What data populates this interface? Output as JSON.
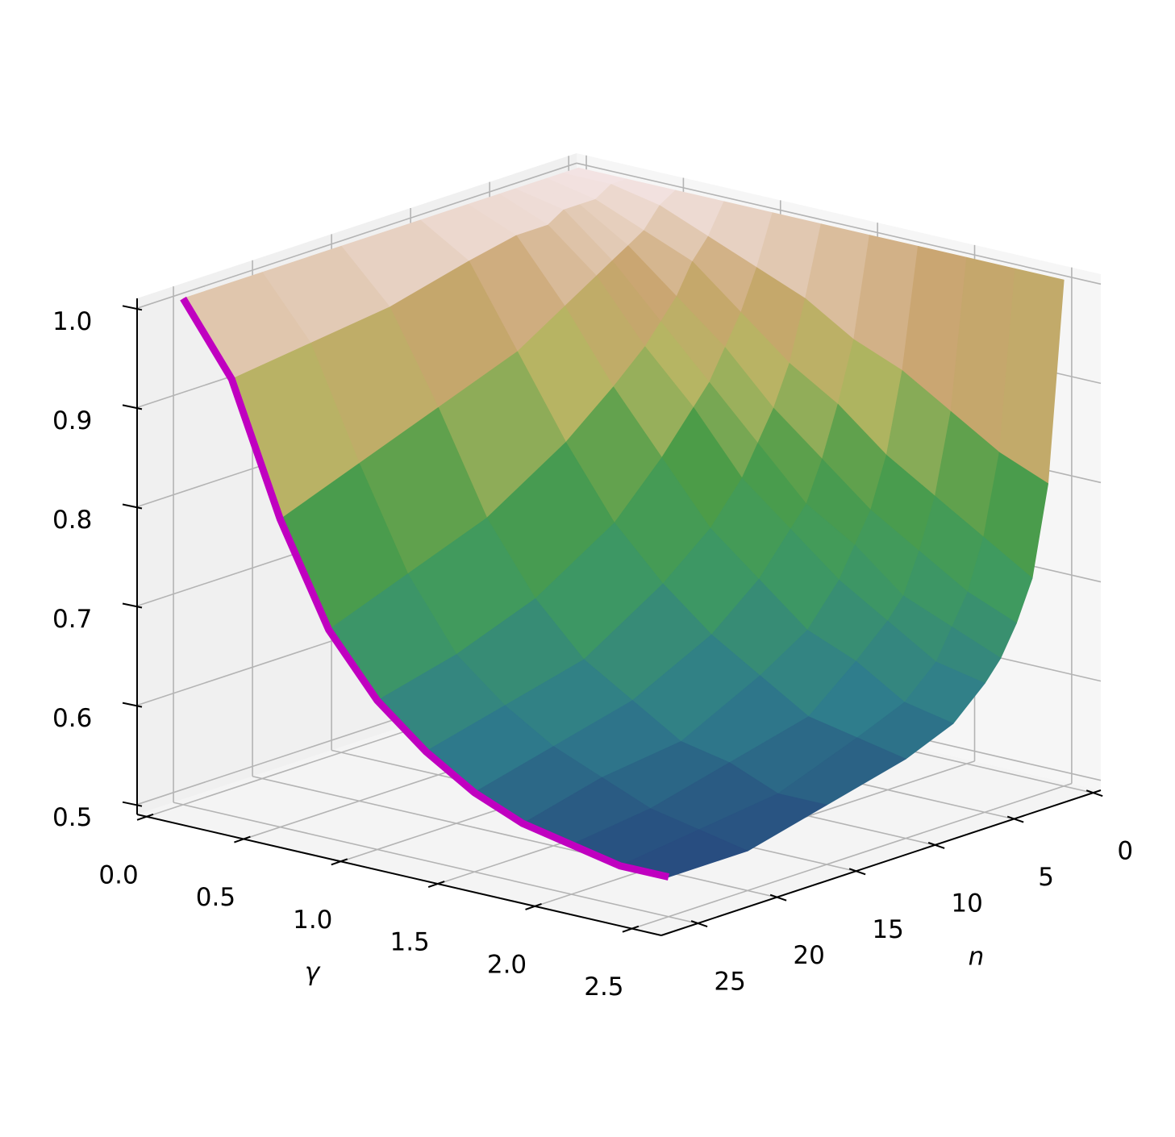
{
  "chart_data": {
    "type": "surface3d",
    "xlabel": "γ",
    "ylabel": "n",
    "xlim": [
      -0.05,
      2.65
    ],
    "ylim": [
      -0.5,
      27.3
    ],
    "zlim": [
      0.49,
      1.01
    ],
    "xticks": [
      {
        "value": 0,
        "label": "0.0"
      },
      0.5,
      {
        "value": 1,
        "label": "1.0"
      },
      1.5,
      {
        "value": 2,
        "label": "2.0"
      },
      2.5
    ],
    "yticks": [
      0,
      5,
      10,
      15,
      20,
      25
    ],
    "zticks": [
      0.5,
      0.6,
      0.7,
      0.8,
      0.9,
      {
        "value": 1,
        "label": "1.0"
      }
    ],
    "grid": true,
    "colormap": [
      [
        0.5,
        "#24367a"
      ],
      [
        0.6,
        "#2f7d8c"
      ],
      [
        0.7,
        "#3f9a60"
      ],
      [
        0.78,
        "#4c9c48"
      ],
      [
        0.86,
        "#b5b662"
      ],
      [
        0.93,
        "#c9a46e"
      ],
      [
        1.0,
        "#f3e3e3"
      ]
    ],
    "surface": {
      "x": [
        0,
        0.25,
        0.5,
        0.75,
        1,
        1.25,
        1.5,
        1.75,
        2,
        2.25,
        2.5
      ],
      "y": [
        0,
        1,
        2,
        3,
        4,
        5,
        7,
        10,
        15,
        20,
        25
      ],
      "z": [
        [
          1,
          1,
          1,
          1,
          1,
          1,
          1,
          1,
          1,
          1,
          1
        ],
        [
          1,
          1,
          0.99,
          0.97,
          0.95,
          0.93,
          0.9,
          0.88,
          0.85,
          0.82,
          0.8
        ],
        [
          1,
          0.99,
          0.97,
          0.95,
          0.91,
          0.87,
          0.84,
          0.8,
          0.77,
          0.74,
          0.71
        ],
        [
          1,
          0.99,
          0.96,
          0.92,
          0.88,
          0.83,
          0.79,
          0.75,
          0.72,
          0.69,
          0.67
        ],
        [
          1,
          0.99,
          0.95,
          0.9,
          0.85,
          0.8,
          0.75,
          0.72,
          0.68,
          0.66,
          0.64
        ],
        [
          1,
          0.98,
          0.94,
          0.88,
          0.83,
          0.77,
          0.73,
          0.69,
          0.66,
          0.63,
          0.62
        ],
        [
          1,
          0.98,
          0.92,
          0.85,
          0.79,
          0.73,
          0.69,
          0.65,
          0.63,
          0.6,
          0.59
        ],
        [
          1,
          0.97,
          0.89,
          0.81,
          0.74,
          0.69,
          0.65,
          0.62,
          0.59,
          0.58,
          0.57
        ],
        [
          1,
          0.95,
          0.86,
          0.76,
          0.69,
          0.64,
          0.61,
          0.58,
          0.57,
          0.55,
          0.55
        ],
        [
          1,
          0.94,
          0.83,
          0.73,
          0.66,
          0.62,
          0.59,
          0.57,
          0.55,
          0.54,
          0.53
        ],
        [
          1,
          0.93,
          0.8,
          0.7,
          0.64,
          0.6,
          0.57,
          0.55,
          0.54,
          0.53,
          0.53
        ]
      ]
    },
    "line": {
      "y": 25,
      "color": "#c000c0",
      "values": [
        1,
        0.93,
        0.8,
        0.7,
        0.64,
        0.6,
        0.57,
        0.55,
        0.54,
        0.53,
        0.53
      ]
    }
  }
}
